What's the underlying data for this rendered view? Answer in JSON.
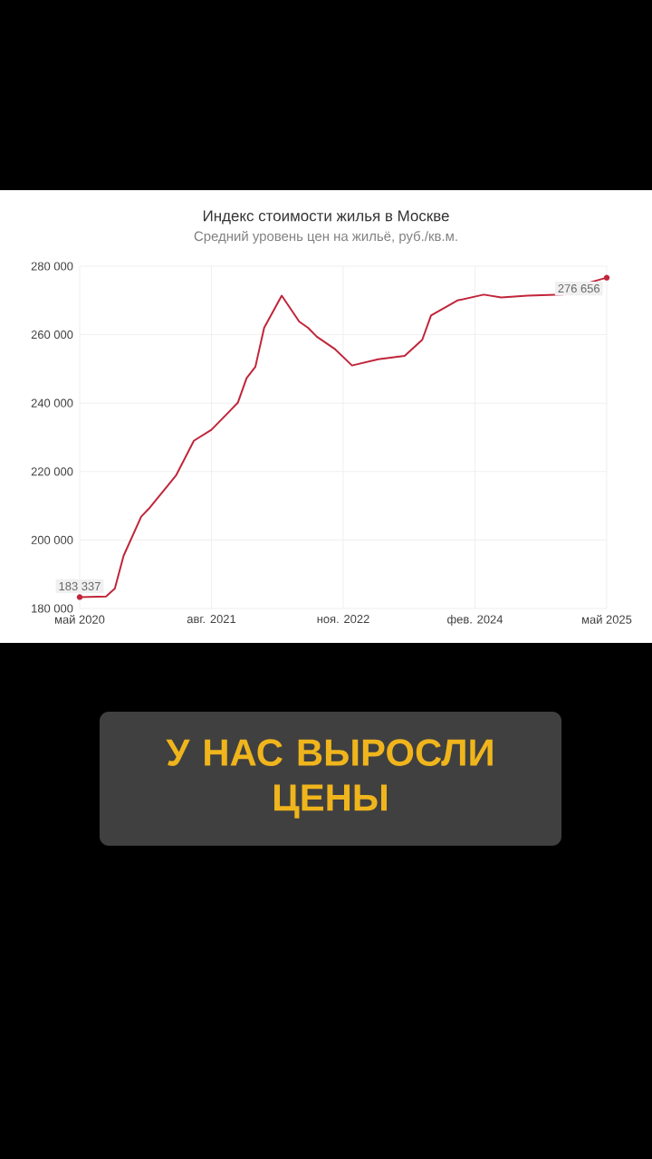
{
  "chart_data": {
    "type": "line",
    "title": "Индекс стоимости жилья в Москве",
    "subtitle": "Средний уровень цен на жильё, руб./кв.м.",
    "x": [
      "2020-05",
      "2020-08",
      "2020-09",
      "2020-10",
      "2020-12",
      "2021-01",
      "2021-03",
      "2021-04",
      "2021-06",
      "2021-08",
      "2021-11",
      "2021-12",
      "2022-01",
      "2022-02",
      "2022-04",
      "2022-06",
      "2022-07",
      "2022-08",
      "2022-10",
      "2022-12",
      "2023-03",
      "2023-06",
      "2023-08",
      "2023-09",
      "2023-12",
      "2024-03",
      "2024-05",
      "2024-08",
      "2024-12",
      "2025-03",
      "2025-05"
    ],
    "values": [
      183337,
      183500,
      185800,
      195400,
      206800,
      209500,
      215800,
      219000,
      229000,
      232200,
      240100,
      247300,
      250600,
      262000,
      271400,
      263800,
      262000,
      259400,
      255900,
      251000,
      252800,
      253800,
      258500,
      265600,
      270000,
      271700,
      270900,
      271400,
      271700,
      275200,
      276656
    ],
    "color": "#c0253a",
    "xlim": [
      "2020-05",
      "2025-05"
    ],
    "xticks": [
      {
        "value": "2020-05",
        "label": "май 2020"
      },
      {
        "value": "2021-08",
        "label": "авг. 2021"
      },
      {
        "value": "2022-11",
        "label": "ноя. 2022"
      },
      {
        "value": "2024-02",
        "label": "фев. 2024"
      },
      {
        "value": "2025-05",
        "label": "май 2025"
      }
    ],
    "ylim": [
      180000,
      280000
    ],
    "yticks": [
      {
        "value": 180000,
        "label": "180 000"
      },
      {
        "value": 200000,
        "label": "200 000"
      },
      {
        "value": 220000,
        "label": "220 000"
      },
      {
        "value": 240000,
        "label": "240 000"
      },
      {
        "value": 260000,
        "label": "260 000"
      },
      {
        "value": 280000,
        "label": "280 000"
      }
    ],
    "grid": true,
    "annotations": [
      "У НАС ВЫРОСЛИ ЦЕНЫ",
      {
        "text": "183 337",
        "x": "2020-05",
        "y": 183337
      },
      {
        "text": "276 656",
        "x": "2025-05",
        "y": 276656
      }
    ]
  }
}
